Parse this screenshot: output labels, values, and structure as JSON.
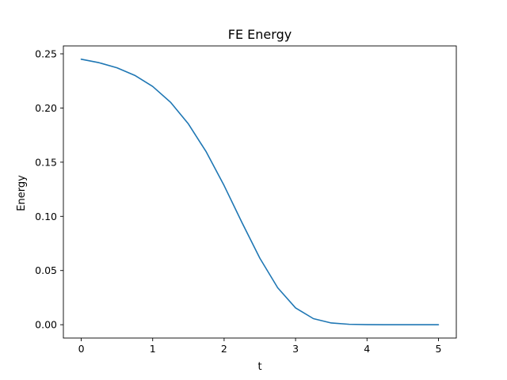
{
  "chart_data": {
    "type": "line",
    "title": "FE Energy",
    "xlabel": "t",
    "ylabel": "Energy",
    "xlim": [
      -0.25,
      5.25
    ],
    "ylim": [
      -0.0123,
      0.2573
    ],
    "xticks": [
      0,
      1,
      2,
      3,
      4,
      5
    ],
    "xtick_labels": [
      "0",
      "1",
      "2",
      "3",
      "4",
      "5"
    ],
    "yticks": [
      0.0,
      0.05,
      0.1,
      0.15,
      0.2,
      0.25
    ],
    "ytick_labels": [
      "0.00",
      "0.05",
      "0.10",
      "0.15",
      "0.20",
      "0.25"
    ],
    "grid": false,
    "legend": "none",
    "series": [
      {
        "color": "#1f77b4",
        "x": [
          0,
          0.25,
          0.5,
          0.75,
          1.0,
          1.25,
          1.5,
          1.75,
          2.0,
          2.25,
          2.5,
          2.75,
          3.0,
          3.25,
          3.5,
          3.75,
          4.0,
          4.25,
          4.5,
          4.75,
          5.0
        ],
        "y": [
          0.245,
          0.2418,
          0.2371,
          0.2301,
          0.2199,
          0.2053,
          0.1853,
          0.1595,
          0.1284,
          0.0943,
          0.0614,
          0.0341,
          0.0155,
          0.0056,
          0.0016,
          0.0004,
          0.0001,
          0.0,
          0.0,
          0.0,
          0.0
        ]
      }
    ]
  }
}
